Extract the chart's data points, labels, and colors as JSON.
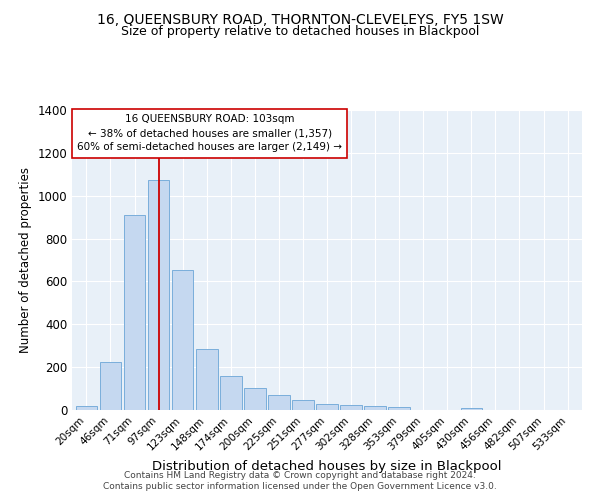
{
  "title": "16, QUEENSBURY ROAD, THORNTON-CLEVELEYS, FY5 1SW",
  "subtitle": "Size of property relative to detached houses in Blackpool",
  "xlabel": "Distribution of detached houses by size in Blackpool",
  "ylabel": "Number of detached properties",
  "bar_labels": [
    "20sqm",
    "46sqm",
    "71sqm",
    "97sqm",
    "123sqm",
    "148sqm",
    "174sqm",
    "200sqm",
    "225sqm",
    "251sqm",
    "277sqm",
    "302sqm",
    "328sqm",
    "353sqm",
    "379sqm",
    "405sqm",
    "430sqm",
    "456sqm",
    "482sqm",
    "507sqm",
    "533sqm"
  ],
  "bar_values": [
    18,
    225,
    910,
    1075,
    655,
    285,
    160,
    105,
    68,
    45,
    27,
    22,
    18,
    12,
    0,
    0,
    10,
    0,
    0,
    0,
    0
  ],
  "bar_color": "#c5d8f0",
  "bar_edge_color": "#7aaedb",
  "vline_x": 3.0,
  "vline_color": "#cc0000",
  "annotation_text": "16 QUEENSBURY ROAD: 103sqm\n← 38% of detached houses are smaller (1,357)\n60% of semi-detached houses are larger (2,149) →",
  "annotation_box_color": "white",
  "annotation_box_edge_color": "#cc0000",
  "ylim": [
    0,
    1400
  ],
  "yticks": [
    0,
    200,
    400,
    600,
    800,
    1000,
    1200,
    1400
  ],
  "footer1": "Contains HM Land Registry data © Crown copyright and database right 2024.",
  "footer2": "Contains public sector information licensed under the Open Government Licence v3.0.",
  "background_color": "#e8f0f8",
  "grid_color": "white",
  "title_fontsize": 10,
  "subtitle_fontsize": 9,
  "tick_fontsize": 7.5,
  "ylabel_fontsize": 8.5,
  "xlabel_fontsize": 9.5,
  "footer_fontsize": 6.5
}
